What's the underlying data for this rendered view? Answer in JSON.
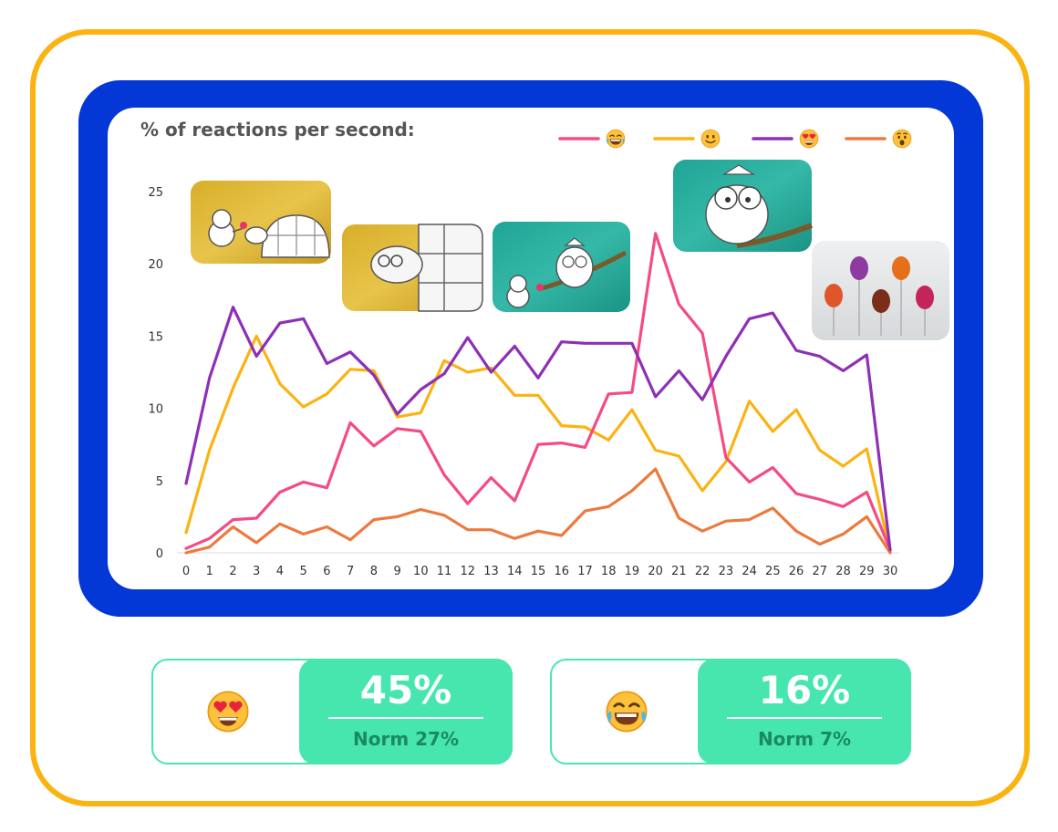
{
  "colors": {
    "outer_frame": "#fbb311",
    "blue_frame": "#0337d6",
    "accent_green": "#46e6ae",
    "norm_text": "#1b8a60"
  },
  "chart_data": {
    "type": "line",
    "title": "% of reactions per second:",
    "xlabel": "",
    "ylabel": "",
    "x": [
      0,
      1,
      2,
      3,
      4,
      5,
      6,
      7,
      8,
      9,
      10,
      11,
      12,
      13,
      14,
      15,
      16,
      17,
      18,
      19,
      20,
      21,
      22,
      23,
      24,
      25,
      26,
      27,
      28,
      29,
      30
    ],
    "x_ticks": [
      "0",
      "1",
      "2",
      "3",
      "4",
      "5",
      "6",
      "7",
      "8",
      "9",
      "10",
      "11",
      "12",
      "13",
      "14",
      "15",
      "16",
      "17",
      "18",
      "19",
      "20",
      "21",
      "22",
      "23",
      "24",
      "25",
      "26",
      "27",
      "28",
      "29",
      "30"
    ],
    "ylim": [
      0,
      25
    ],
    "y_ticks": [
      "0",
      "5",
      "10",
      "15",
      "20",
      "25"
    ],
    "grid": false,
    "legend_position": "top-right",
    "series": [
      {
        "legend_icon": "laughing-tears-emoji",
        "color": "#f44b82",
        "values": [
          0.3,
          1.0,
          2.3,
          2.4,
          4.2,
          4.9,
          4.5,
          9.0,
          7.4,
          8.6,
          8.4,
          5.4,
          3.4,
          5.2,
          3.6,
          7.5,
          7.6,
          7.3,
          11.0,
          11.1,
          22.1,
          17.2,
          15.2,
          6.6,
          4.9,
          5.9,
          4.1,
          3.7,
          3.2,
          4.2,
          0.2
        ]
      },
      {
        "legend_icon": "smile-emoji",
        "color": "#fbb311",
        "values": [
          1.4,
          7.1,
          11.4,
          15.0,
          11.7,
          10.1,
          11.0,
          12.7,
          12.6,
          9.4,
          9.7,
          13.3,
          12.5,
          12.8,
          10.9,
          10.9,
          8.8,
          8.7,
          7.8,
          9.9,
          7.1,
          6.7,
          4.3,
          6.3,
          10.5,
          8.4,
          9.9,
          7.1,
          6.0,
          7.2,
          0.1
        ]
      },
      {
        "legend_icon": "heart-eyes-emoji",
        "color": "#8e30b5",
        "values": [
          4.8,
          12.1,
          17.0,
          13.6,
          15.9,
          16.2,
          13.1,
          13.9,
          12.3,
          9.6,
          11.3,
          12.4,
          14.9,
          12.5,
          14.3,
          12.1,
          14.6,
          14.5,
          14.5,
          14.5,
          10.8,
          12.6,
          10.6,
          13.6,
          16.2,
          16.6,
          14.0,
          13.6,
          12.6,
          13.7,
          0.2
        ]
      },
      {
        "legend_icon": "surprised-emoji",
        "color": "#ec7a3f",
        "values": [
          0.0,
          0.4,
          1.8,
          0.7,
          2.0,
          1.3,
          1.8,
          0.9,
          2.3,
          2.5,
          3.0,
          2.6,
          1.6,
          1.6,
          1.0,
          1.5,
          1.2,
          2.9,
          3.2,
          4.3,
          5.8,
          2.4,
          1.5,
          2.2,
          2.3,
          3.1,
          1.5,
          0.6,
          1.3,
          2.5,
          0.0
        ]
      }
    ],
    "scene_thumbnails": [
      {
        "name": "boy-and-tortoise-frame",
        "at_x": 3.5
      },
      {
        "name": "tortoise-closeup-frame",
        "at_x": 8.5
      },
      {
        "name": "boy-and-owl-frame",
        "at_x": 12.5
      },
      {
        "name": "owl-closeup-frame",
        "at_x": 21.5
      },
      {
        "name": "lollipops-product-frame",
        "at_x": 27.2
      }
    ]
  },
  "stats": [
    {
      "icon": "heart-eyes-emoji",
      "value": "45%",
      "norm": "Norm 27%"
    },
    {
      "icon": "laughing-tears-emoji",
      "value": "16%",
      "norm": "Norm 7%"
    }
  ]
}
